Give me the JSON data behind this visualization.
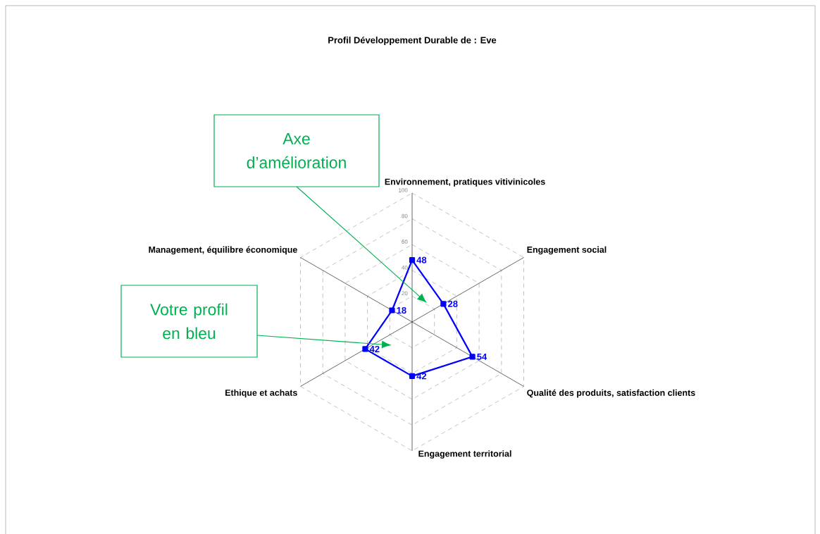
{
  "chart_data": {
    "type": "radar",
    "title": "Profil Développement Durable de : Eve",
    "categories": [
      "Environnement, pratiques vitivinicoles",
      "Engagement social",
      "Qualité des produits, satisfaction clients",
      "Engagement territorial",
      "Ethique et achats",
      "Management, équilibre économique"
    ],
    "series": [
      {
        "color": "#0000ff",
        "values": [
          48,
          28,
          54,
          42,
          42,
          18
        ]
      }
    ],
    "ylim": [
      0,
      100
    ],
    "yticks": [
      20,
      40,
      60,
      80,
      100
    ],
    "grid": true,
    "marker": "square",
    "line_style": "solid",
    "data_labels": true,
    "annotations": [
      "Axe d’amélioration",
      "Votre profil en bleu"
    ]
  }
}
